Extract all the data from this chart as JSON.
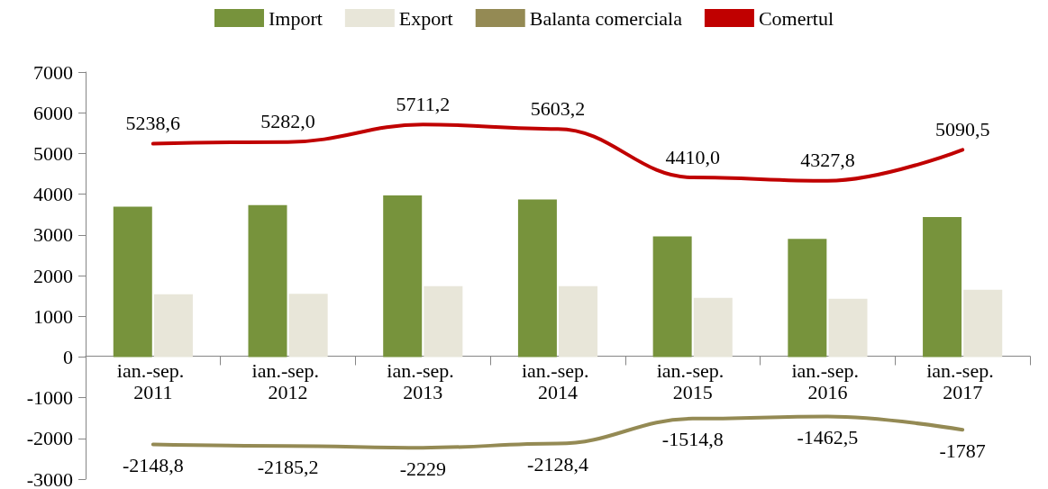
{
  "chart_data": {
    "type": "bar",
    "categories": [
      "ian.-sep. 2011",
      "ian.-sep. 2012",
      "ian.-sep. 2013",
      "ian.-sep. 2014",
      "ian.-sep. 2015",
      "ian.-sep. 2016",
      "ian.-sep. 2017"
    ],
    "series": [
      {
        "name": "Import",
        "color": "#77933c",
        "values": [
          3690,
          3730,
          3970,
          3870,
          2960,
          2900,
          3440
        ]
      },
      {
        "name": "Export",
        "color": "#e8e6d9",
        "values": [
          1540,
          1550,
          1740,
          1740,
          1450,
          1430,
          1650
        ]
      },
      {
        "name": "Balanta comerciala",
        "type": "line",
        "color": "#948a54",
        "values": [
          -2148.8,
          -2185.2,
          -2229,
          -2128.4,
          -1514.8,
          -1462.5,
          -1787
        ],
        "value_labels": [
          "-2148,8",
          "-2185,2",
          "-2229",
          "-2128,4",
          "-1514,8",
          "-1462,5",
          "-1787"
        ]
      },
      {
        "name": "Comertul",
        "type": "line",
        "color": "#c00000",
        "values": [
          5238.6,
          5282.0,
          5711.2,
          5603.2,
          4410.0,
          4327.8,
          5090.5
        ],
        "value_labels": [
          "5238,6",
          "5282,0",
          "5711,2",
          "5603,2",
          "4410,0",
          "4327,8",
          "5090,5"
        ]
      }
    ],
    "ylim": [
      -3000,
      7000
    ],
    "yticks": [
      -3000,
      -2000,
      -1000,
      0,
      1000,
      2000,
      3000,
      4000,
      5000,
      6000,
      7000
    ],
    "grid": false,
    "legend": "top",
    "marker": "none",
    "line_style": "solid"
  }
}
